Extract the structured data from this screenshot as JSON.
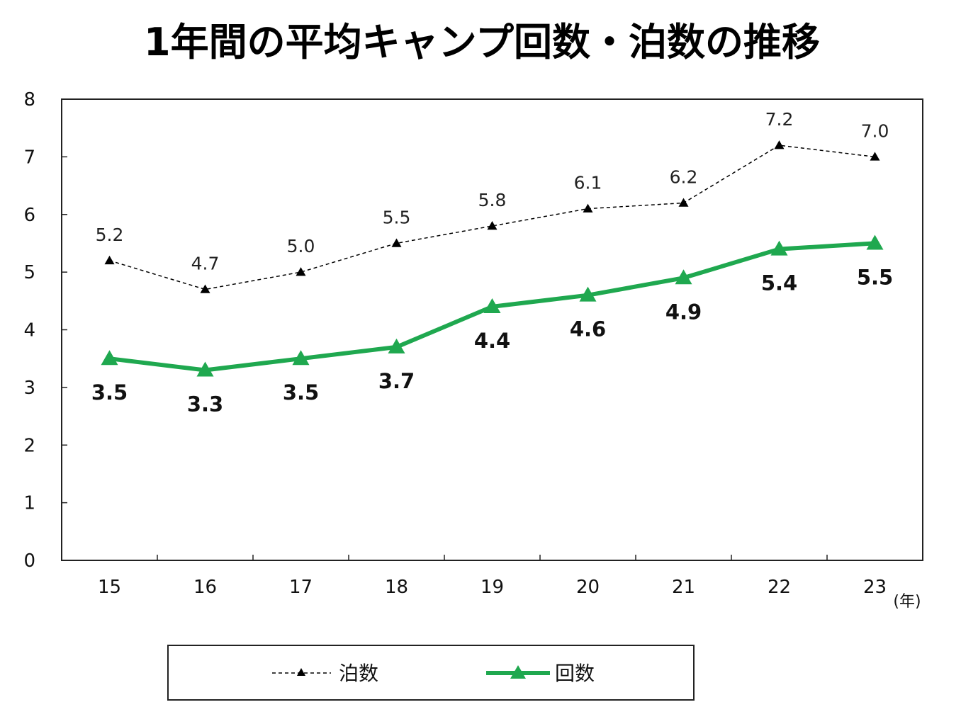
{
  "chart_data": {
    "type": "line",
    "title": "1年間の平均キャンプ回数・泊数の推移",
    "x": [
      "15",
      "16",
      "17",
      "18",
      "19",
      "20",
      "21",
      "22",
      "23"
    ],
    "x_unit": "(年)",
    "ylim": [
      0,
      8
    ],
    "y_ticks": [
      "0",
      "1",
      "2",
      "3",
      "4",
      "5",
      "6",
      "7",
      "8"
    ],
    "series": [
      {
        "name": "泊数",
        "values": [
          5.2,
          4.7,
          5.0,
          5.5,
          5.8,
          6.1,
          6.2,
          7.2,
          7.0
        ],
        "labels": [
          "5.2",
          "4.7",
          "5.0",
          "5.5",
          "5.8",
          "6.1",
          "6.2",
          "7.2",
          "7.0"
        ],
        "color": "#000000",
        "style": "dashed"
      },
      {
        "name": "回数",
        "values": [
          3.5,
          3.3,
          3.5,
          3.7,
          4.4,
          4.6,
          4.9,
          5.4,
          5.5
        ],
        "labels": [
          "3.5",
          "3.3",
          "3.5",
          "3.7",
          "4.4",
          "4.6",
          "4.9",
          "5.4",
          "5.5"
        ],
        "color": "#1fa84f",
        "style": "solid"
      }
    ],
    "legend_position": "bottom",
    "grid": false
  }
}
